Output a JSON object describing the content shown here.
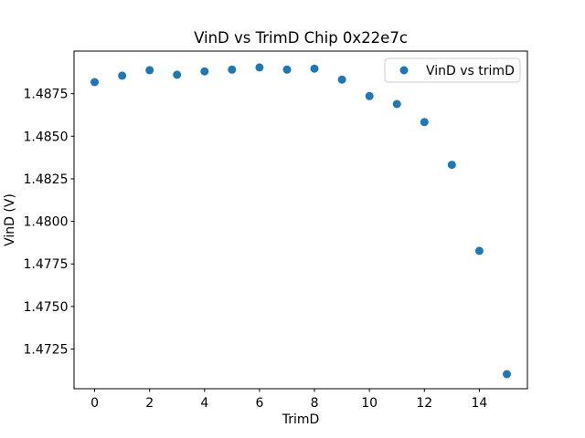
{
  "chart_data": {
    "type": "scatter",
    "title": "VinD vs TrimD Chip 0x22e7c",
    "xlabel": "TrimD",
    "ylabel": "VinD (V)",
    "legend": [
      "VinD vs trimD"
    ],
    "legend_location": "upper right",
    "marker_color": "#1f77b4",
    "marker_diameter_px": 9,
    "x": [
      0,
      1,
      2,
      3,
      4,
      5,
      6,
      7,
      8,
      9,
      10,
      11,
      12,
      13,
      14,
      15
    ],
    "y": [
      1.48818,
      1.48856,
      1.48888,
      1.48861,
      1.48881,
      1.48891,
      1.48904,
      1.48891,
      1.48897,
      1.48833,
      1.48736,
      1.48689,
      1.48583,
      1.48332,
      1.47827,
      1.47103
    ],
    "xlim": [
      -0.75,
      15.75
    ],
    "ylim": [
      1.47017,
      1.49
    ],
    "xticks": [
      0,
      2,
      4,
      6,
      8,
      10,
      12,
      14
    ],
    "yticks": [
      1.4725,
      1.475,
      1.4775,
      1.48,
      1.4825,
      1.485,
      1.4875
    ],
    "ytick_decimals": 4,
    "grid": false,
    "background_color": "#ffffff",
    "axis_color": "#000000",
    "legend_border_color": "#cccccc",
    "legend_background": "rgba(255,255,255,0.8)"
  }
}
